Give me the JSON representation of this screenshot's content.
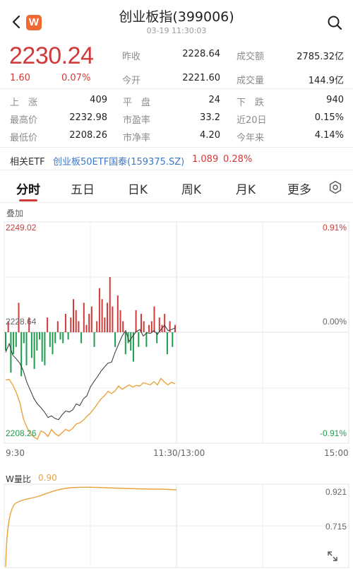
{
  "header": {
    "title": "创业板指(399006)",
    "time": "03-19 11:30:03",
    "logo_letter": "W"
  },
  "quote": {
    "price": "2230.24",
    "change": "1.60",
    "change_pct": "0.07%",
    "rows": [
      {
        "l1": "昨收",
        "v1": "2228.64",
        "l2": "成交额",
        "v2": "2785.32亿"
      },
      {
        "l1": "今开",
        "v1": "2221.60",
        "l2": "成交量",
        "v2": "144.9亿"
      }
    ]
  },
  "stats": [
    [
      {
        "label": "上　涨",
        "value": "409",
        "color": "red"
      },
      {
        "label": "平　盘",
        "value": "24",
        "color": ""
      },
      {
        "label": "下　跌",
        "value": "940",
        "color": "green"
      }
    ],
    [
      {
        "label": "最高价",
        "value": "2232.98",
        "color": ""
      },
      {
        "label": "市盈率",
        "value": "33.2",
        "color": ""
      },
      {
        "label": "近20日",
        "value": "0.15%",
        "color": ""
      }
    ],
    [
      {
        "label": "最低价",
        "value": "2208.26",
        "color": ""
      },
      {
        "label": "市净率",
        "value": "4.20",
        "color": ""
      },
      {
        "label": "今年来",
        "value": "4.14%",
        "color": ""
      }
    ]
  ],
  "etf": {
    "label": "相关ETF",
    "name": "创业板50ETF国泰(159375.SZ)",
    "price": "1.089",
    "pct": "0.28%"
  },
  "tabs": [
    "分时",
    "五日",
    "日K",
    "周K",
    "月K",
    "更多"
  ],
  "active_tab": 0,
  "overlay_label": "叠加",
  "chart": {
    "y_top": "2249.02",
    "y_mid": "2228.64",
    "y_bottom": "2208.26",
    "pct_top": "0.91%",
    "pct_mid": "0.00%",
    "pct_bottom": "-0.91%",
    "time_labels": [
      "9:30",
      "11:30/13:00",
      "15:00"
    ]
  },
  "chart_data": {
    "type": "line",
    "y_range": [
      2208.26,
      2249.02
    ],
    "series": [
      {
        "values": [
          2225.0,
          2226.6,
          2224.5,
          2223.8,
          2223.0,
          2221.6,
          2219.5,
          2218.0,
          2216.5,
          2215.5,
          2214.8,
          2214.0,
          2213.0,
          2213.3,
          2212.8,
          2212.6,
          2213.5,
          2214.2,
          2214.0,
          2214.4,
          2215.5,
          2215.2,
          2216.4,
          2217.0,
          2218.6,
          2219.6,
          2220.5,
          2221.5,
          2222.3,
          2223.0,
          2223.2,
          2225.0,
          2226.5,
          2228.0,
          2229.0,
          2227.0,
          2228.0,
          2228.8,
          2229.2,
          2228.0,
          2228.6,
          2228.5,
          2229.0,
          2228.3,
          2229.2,
          2230.0,
          2229.0,
          2229.2,
          2229.5
        ]
      },
      {
        "values": [
          2219.9,
          2220.0,
          2219.0,
          2217.6,
          2215.8,
          2212.8,
          2211.2,
          2210.0,
          2209.4,
          2209.0,
          2210.5,
          2210.2,
          2209.5,
          2210.8,
          2210.0,
          2209.6,
          2210.2,
          2210.8,
          2210.5,
          2211.0,
          2211.8,
          2212.0,
          2212.5,
          2213.2,
          2213.8,
          2214.6,
          2215.5,
          2216.4,
          2217.0,
          2217.8,
          2217.4,
          2217.9,
          2218.8,
          2218.2,
          2218.6,
          2219.0,
          2218.6,
          2218.9,
          2218.8,
          2219.4,
          2219.2,
          2219.0,
          2219.6,
          2219.0,
          2220.2,
          2219.5,
          2219.0,
          2219.5,
          2219.2
        ]
      }
    ],
    "volume_bars": [
      -5,
      3,
      -11,
      -6,
      -4,
      8,
      -12,
      -3,
      -9,
      4,
      -7,
      -10,
      -5,
      -2,
      -8,
      -9,
      4,
      -4,
      -6,
      -3,
      3,
      -2,
      -3,
      5,
      -2,
      4,
      9,
      6,
      3,
      -3,
      8,
      2,
      5,
      7,
      -4,
      3,
      12,
      9,
      4,
      8,
      15,
      7,
      -4,
      10,
      6,
      3,
      -6,
      -3,
      -5,
      -8,
      6,
      -4,
      5,
      3,
      -4,
      2,
      3,
      7,
      -3,
      4,
      2,
      5,
      -6,
      3,
      -4,
      2
    ]
  },
  "wb": {
    "label": "W量比",
    "value": "0.90",
    "tick_high": "0.921",
    "tick_low": "0.715"
  },
  "colors": {
    "up": "#d23a3a",
    "down": "#1f9d4f",
    "accent": "#e8a33d",
    "link": "#3a78c9"
  }
}
